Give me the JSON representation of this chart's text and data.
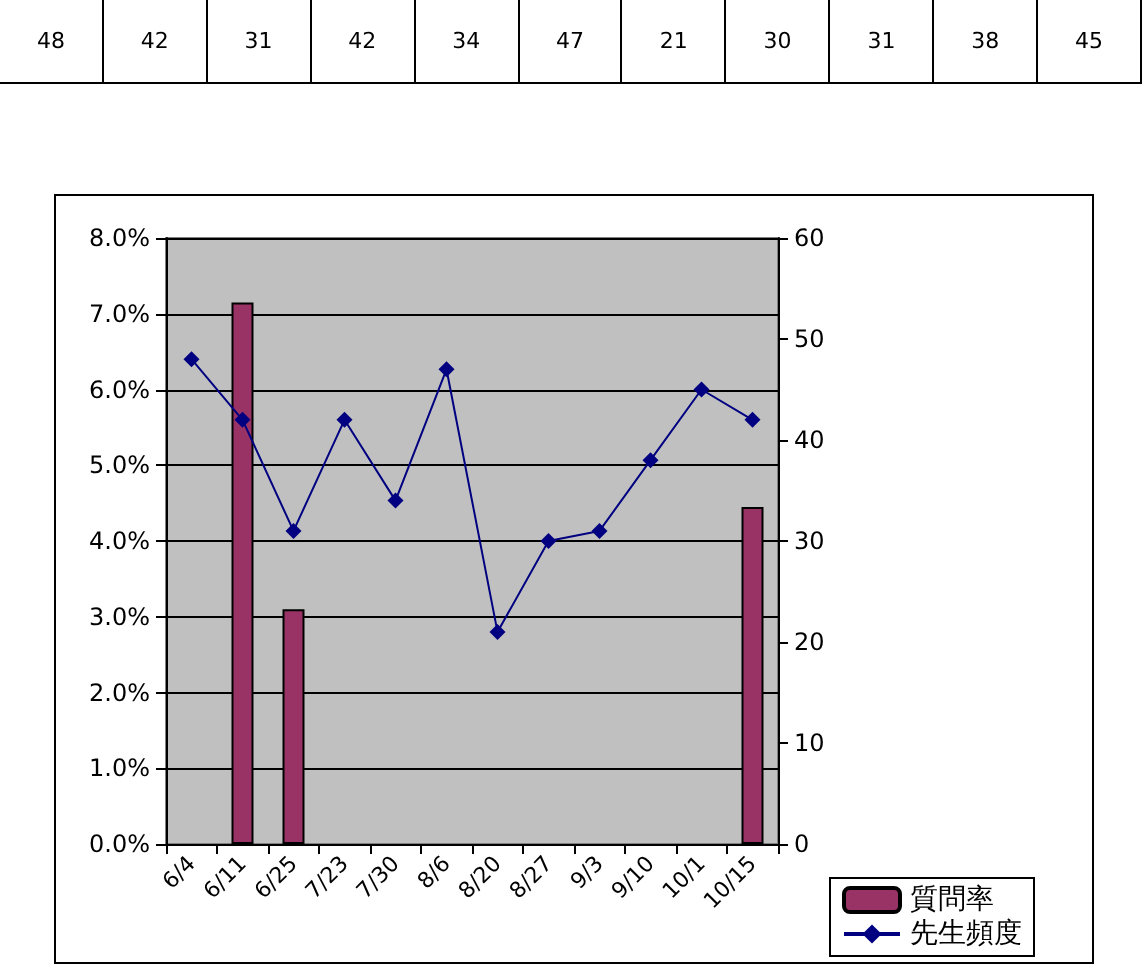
{
  "chart_data": {
    "type": "bar",
    "categories": [
      "6/4",
      "6/11",
      "6/25",
      "7/23",
      "7/30",
      "8/6",
      "8/20",
      "8/27",
      "9/3",
      "9/10",
      "10/1",
      "10/15"
    ],
    "series": [
      {
        "name": "質問率",
        "color": "#993366",
        "values": [
          null,
          7.15,
          3.1,
          null,
          null,
          null,
          null,
          null,
          null,
          null,
          null,
          4.45
        ]
      },
      {
        "name": "先生頻度",
        "type": "line",
        "axis": "y2",
        "color": "#000080",
        "marker": "diamond",
        "values": [
          48,
          42,
          31,
          42,
          34,
          47,
          21,
          30,
          31,
          38,
          45,
          42
        ]
      }
    ],
    "annotations": [
      "48",
      "42",
      "31",
      "42",
      "34",
      "47",
      "21",
      "30",
      "31",
      "38",
      "45"
    ],
    "ylim": [
      0,
      8
    ],
    "yticks": [
      {
        "value": 0,
        "label": "0.0%"
      },
      {
        "value": 1,
        "label": "1.0%"
      },
      {
        "value": 2,
        "label": "2.0%"
      },
      {
        "value": 3,
        "label": "3.0%"
      },
      {
        "value": 4,
        "label": "4.0%"
      },
      {
        "value": 5,
        "label": "5.0%"
      },
      {
        "value": 6,
        "label": "6.0%"
      },
      {
        "value": 7,
        "label": "7.0%"
      },
      {
        "value": 8,
        "label": "8.0%"
      }
    ],
    "y2lim": [
      0,
      60
    ],
    "y2ticks": [
      0,
      10,
      20,
      30,
      40,
      50,
      60
    ],
    "grid": "y",
    "legend": "bottom right"
  }
}
